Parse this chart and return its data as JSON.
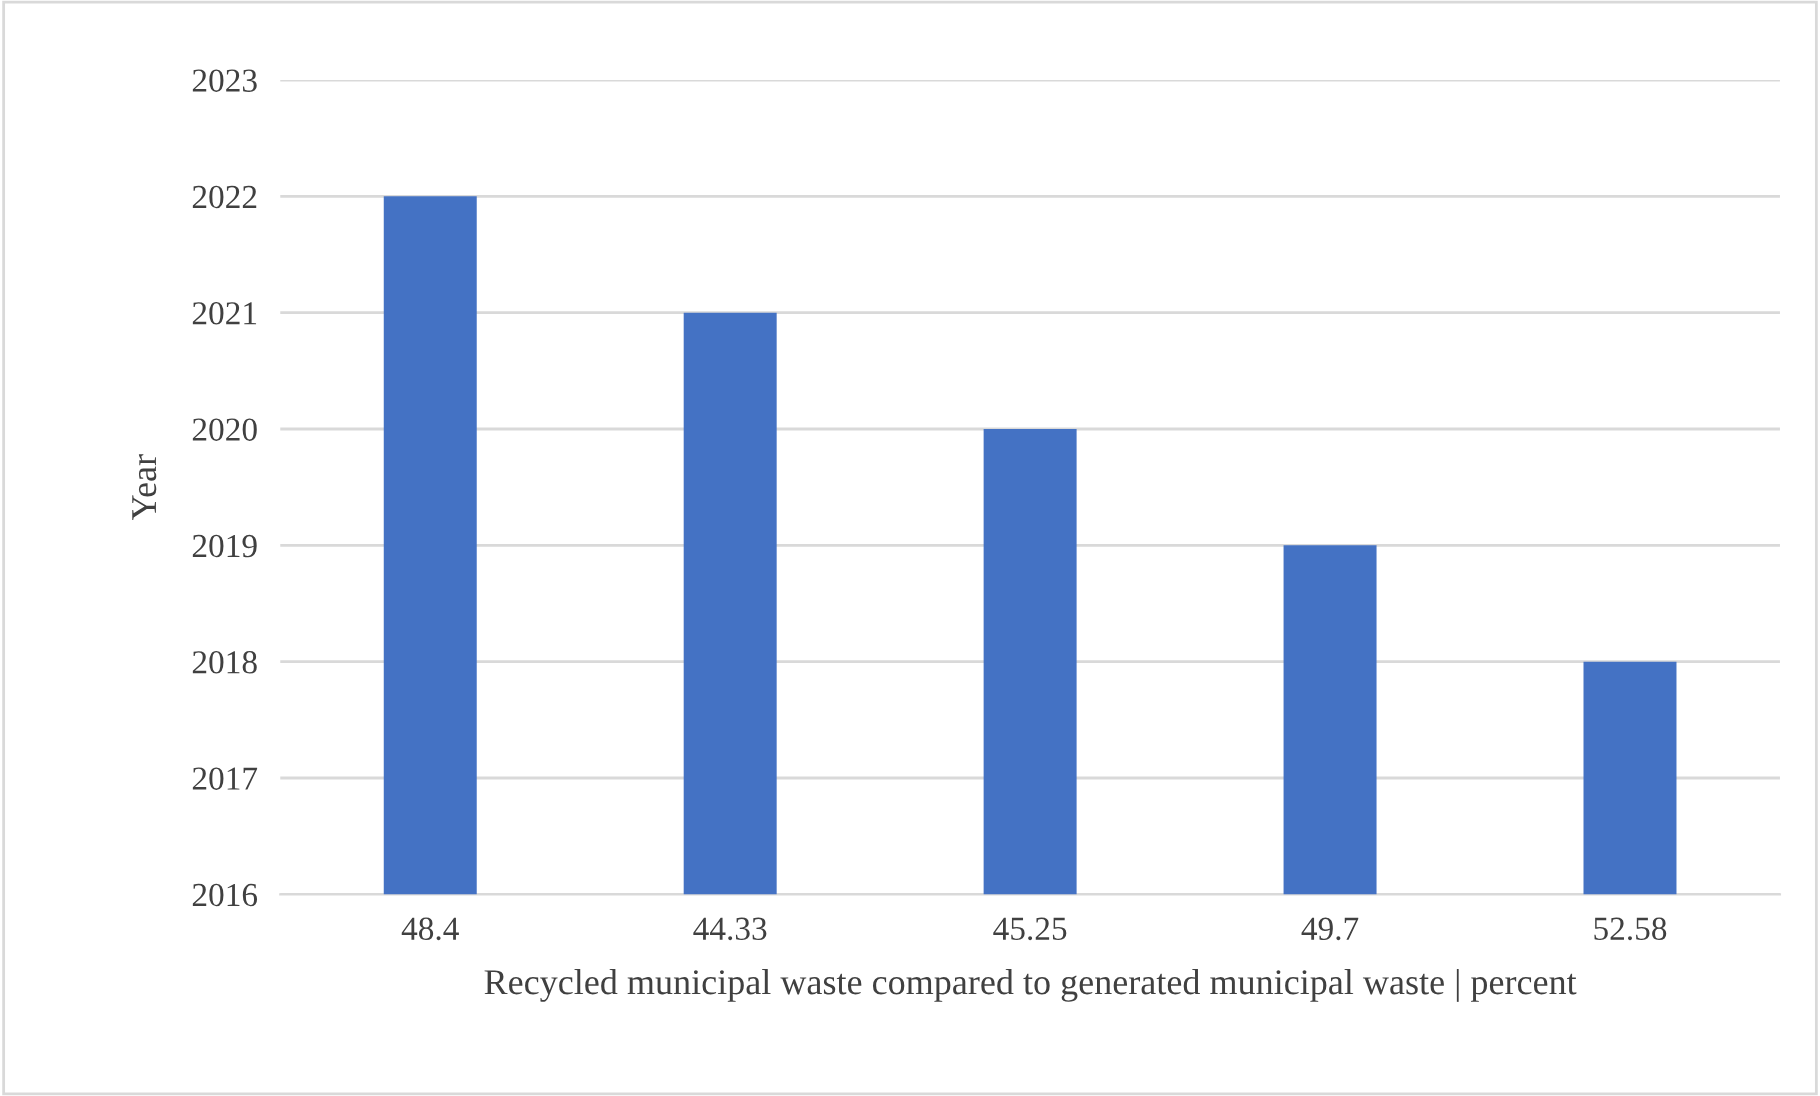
{
  "chart_data": {
    "type": "bar",
    "xlabel": "Recycled municipal waste compared to generated municipal waste | percent",
    "ylabel": "Year",
    "categories": [
      "48.4",
      "44.33",
      "45.25",
      "49.7",
      "52.58"
    ],
    "values": [
      2022,
      2021,
      2020,
      2019,
      2018
    ],
    "color": "#4472c4",
    "ylim": [
      2016,
      2023
    ],
    "yticks": [
      2016,
      2017,
      2018,
      2019,
      2020,
      2021,
      2022,
      2023
    ],
    "grid": "y",
    "legend": false
  }
}
